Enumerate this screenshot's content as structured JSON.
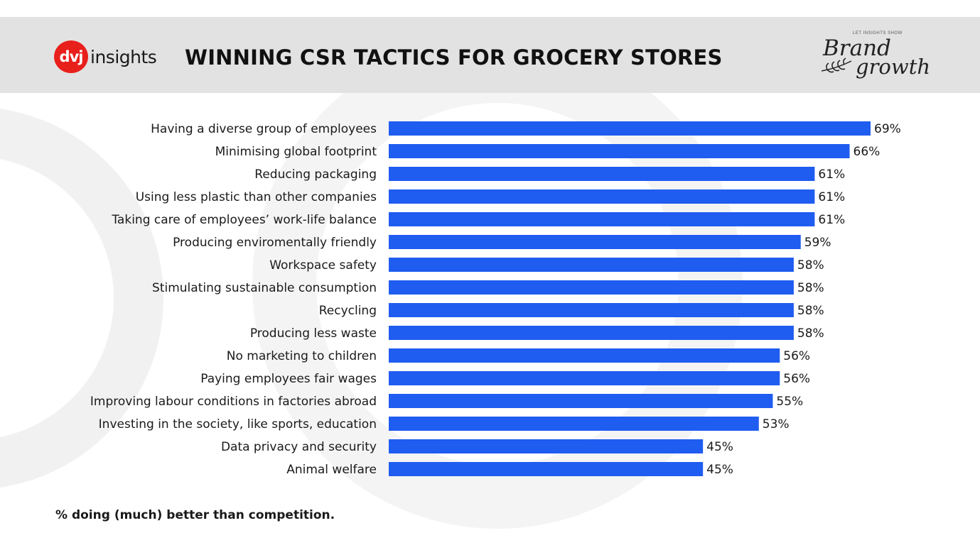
{
  "header": {
    "logo_mark": "dvj",
    "logo_text": "insights",
    "brand_small": "LET INSIGHTS SHOW",
    "brand_line1": "Brand",
    "brand_line2": "growth"
  },
  "chart_data": {
    "type": "bar",
    "orientation": "horizontal",
    "title": "WINNING CSR TACTICS FOR GROCERY STORES",
    "categories": [
      "Having a diverse group of employees",
      "Minimising global footprint",
      "Reducing packaging",
      "Using less plastic than other companies",
      "Taking care of employees’ work-life balance",
      "Producing enviromentally friendly",
      "Workspace safety",
      "Stimulating sustainable consumption",
      "Recycling",
      "Producing less waste",
      "No marketing to children",
      "Paying employees fair wages",
      "Improving labour conditions in factories abroad",
      "Investing in the society, like sports, education",
      "Data privacy and security",
      "Animal welfare"
    ],
    "values": [
      69,
      66,
      61,
      61,
      61,
      59,
      58,
      58,
      58,
      58,
      56,
      56,
      55,
      53,
      45,
      45
    ],
    "value_labels": [
      "69%",
      "66%",
      "61%",
      "61%",
      "61%",
      "59%",
      "58%",
      "58%",
      "58%",
      "58%",
      "56%",
      "56%",
      "55%",
      "53%",
      "45%",
      "45%"
    ],
    "xlim": [
      0,
      69
    ],
    "grid": false,
    "legend": "none",
    "bar_color": "#1f5cf0",
    "footnote": "% doing (much) better than competition."
  }
}
